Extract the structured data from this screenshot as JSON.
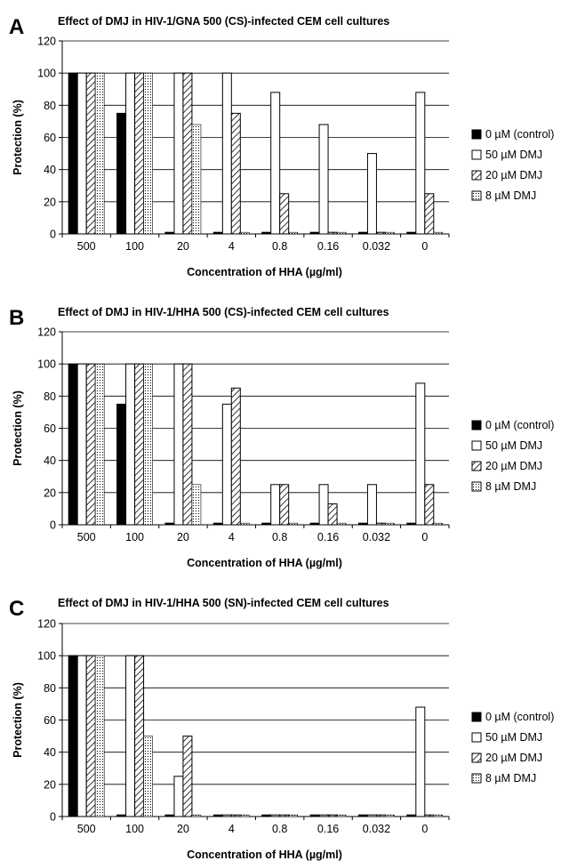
{
  "legend": [
    "0 µM (control)",
    "50 µM DMJ",
    "20 µM DMJ",
    "8 µM DMJ"
  ],
  "chart_data": [
    {
      "type": "bar",
      "panel_label": "A",
      "title": "Effect of DMJ in HIV-1/GNA 500 (CS)-infected CEM cell cultures",
      "xlabel": "Concentration of HHA (µg/ml)",
      "ylabel": "Protection (%)",
      "ylim": [
        0,
        120
      ],
      "yticks": [
        0,
        20,
        40,
        60,
        80,
        100,
        120
      ],
      "grid": true,
      "legend_position": "right",
      "categories": [
        "500",
        "100",
        "20",
        "4",
        "0.8",
        "0.16",
        "0.032",
        "0"
      ],
      "series": [
        {
          "name": "0 µM (control)",
          "values": [
            100,
            75,
            1,
            1,
            1,
            1,
            1,
            1
          ]
        },
        {
          "name": "50 µM DMJ",
          "values": [
            100,
            100,
            100,
            100,
            88,
            68,
            50,
            88
          ]
        },
        {
          "name": "20 µM DMJ",
          "values": [
            100,
            100,
            100,
            75,
            25,
            1,
            1,
            25
          ]
        },
        {
          "name": "8 µM DMJ",
          "values": [
            100,
            100,
            68,
            1,
            1,
            1,
            1,
            1
          ]
        }
      ]
    },
    {
      "type": "bar",
      "panel_label": "B",
      "title": "Effect of DMJ in HIV-1/HHA 500 (CS)-infected CEM cell cultures",
      "xlabel": "Concentration of HHA (µg/ml)",
      "ylabel": "Protection (%)",
      "ylim": [
        0,
        120
      ],
      "yticks": [
        0,
        20,
        40,
        60,
        80,
        100,
        120
      ],
      "grid": true,
      "legend_position": "right",
      "categories": [
        "500",
        "100",
        "20",
        "4",
        "0.8",
        "0.16",
        "0.032",
        "0"
      ],
      "series": [
        {
          "name": "0 µM (control)",
          "values": [
            100,
            75,
            1,
            1,
            1,
            1,
            1,
            1
          ]
        },
        {
          "name": "50 µM DMJ",
          "values": [
            100,
            100,
            100,
            75,
            25,
            25,
            25,
            88
          ]
        },
        {
          "name": "20 µM DMJ",
          "values": [
            100,
            100,
            100,
            85,
            25,
            13,
            1,
            25
          ]
        },
        {
          "name": "8 µM DMJ",
          "values": [
            100,
            100,
            25,
            1,
            1,
            1,
            1,
            1
          ]
        }
      ]
    },
    {
      "type": "bar",
      "panel_label": "C",
      "title": "Effect of DMJ in HIV-1/HHA 500 (SN)-infected CEM cell cultures",
      "xlabel": "Concentration of HHA (µg/ml)",
      "ylabel": "Protection (%)",
      "ylim": [
        0,
        120
      ],
      "yticks": [
        0,
        20,
        40,
        60,
        80,
        100,
        120
      ],
      "grid": true,
      "legend_position": "right",
      "categories": [
        "500",
        "100",
        "20",
        "4",
        "0.8",
        "0.16",
        "0.032",
        "0"
      ],
      "series": [
        {
          "name": "0 µM (control)",
          "values": [
            100,
            1,
            1,
            1,
            1,
            1,
            1,
            1
          ]
        },
        {
          "name": "50 µM DMJ",
          "values": [
            100,
            100,
            25,
            1,
            1,
            1,
            1,
            68
          ]
        },
        {
          "name": "20 µM DMJ",
          "values": [
            100,
            100,
            50,
            1,
            1,
            1,
            1,
            1
          ]
        },
        {
          "name": "8 µM DMJ",
          "values": [
            100,
            50,
            1,
            1,
            1,
            1,
            1,
            1
          ]
        }
      ]
    }
  ]
}
